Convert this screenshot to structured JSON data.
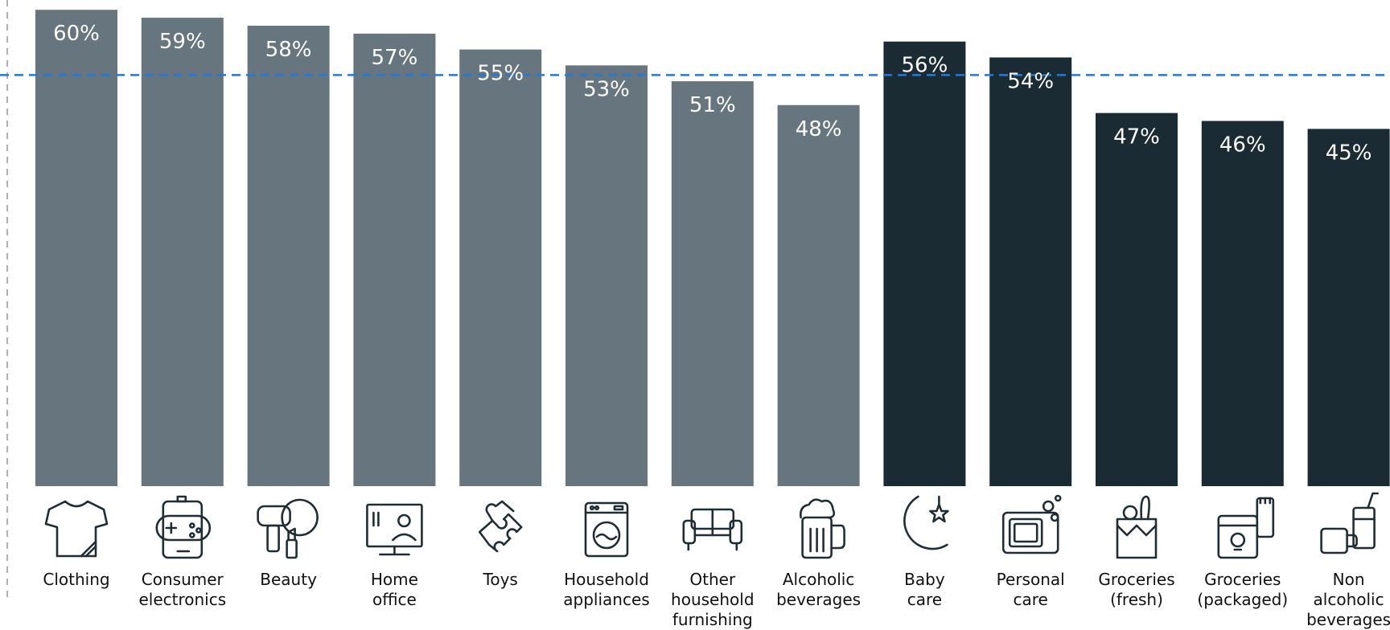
{
  "chart_data": {
    "type": "bar",
    "title": "",
    "xlabel": "",
    "ylabel": "",
    "ylim": [
      0,
      60
    ],
    "grid": false,
    "reference_line": {
      "value": 53,
      "style": "dashed",
      "color": "#1f7ae0"
    },
    "categories": [
      "Clothing",
      "Consumer electronics",
      "Beauty",
      "Home office",
      "Toys",
      "Household appliances",
      "Other household furnishing",
      "Alcoholic beverages",
      "Baby care",
      "Personal care",
      "Groceries (fresh)",
      "Groceries (packaged)",
      "Non alcoholic beverages"
    ],
    "category_lines": [
      [
        "Clothing"
      ],
      [
        "Consumer",
        "electronics"
      ],
      [
        "Beauty"
      ],
      [
        "Home",
        "office"
      ],
      [
        "Toys"
      ],
      [
        "Household",
        "appliances"
      ],
      [
        "Other",
        "household",
        "furnishing"
      ],
      [
        "Alcoholic",
        "beverages"
      ],
      [
        "Baby",
        "care"
      ],
      [
        "Personal",
        "care"
      ],
      [
        "Groceries",
        "(fresh)"
      ],
      [
        "Groceries",
        "(packaged)"
      ],
      [
        "Non",
        "alcoholic",
        "beverages"
      ]
    ],
    "values": [
      60,
      59,
      58,
      57,
      55,
      53,
      51,
      48,
      56,
      54,
      47,
      46,
      45
    ],
    "value_labels": [
      "60%",
      "59%",
      "58%",
      "57%",
      "55%",
      "53%",
      "51%",
      "48%",
      "56%",
      "54%",
      "47%",
      "46%",
      "45%"
    ],
    "groups": [
      "light",
      "light",
      "light",
      "light",
      "light",
      "light",
      "light",
      "light",
      "dark",
      "dark",
      "dark",
      "dark",
      "dark"
    ],
    "colors": {
      "light": "#66757e",
      "dark": "#1a2b33",
      "label": "#ffffff",
      "reference": "#1f7ae0",
      "axis": "#b0b0b0",
      "icon": "#1f2d35"
    },
    "icons": [
      "tshirt-icon",
      "game-controller-phone-icon",
      "hair-dryer-lipstick-icon",
      "monitor-person-icon",
      "puzzle-icon",
      "washing-machine-icon",
      "sofa-icon",
      "beer-mug-icon",
      "moon-star-icon",
      "microwave-icon",
      "grocery-bag-icon",
      "packaged-food-icon",
      "cup-drink-icon"
    ]
  }
}
